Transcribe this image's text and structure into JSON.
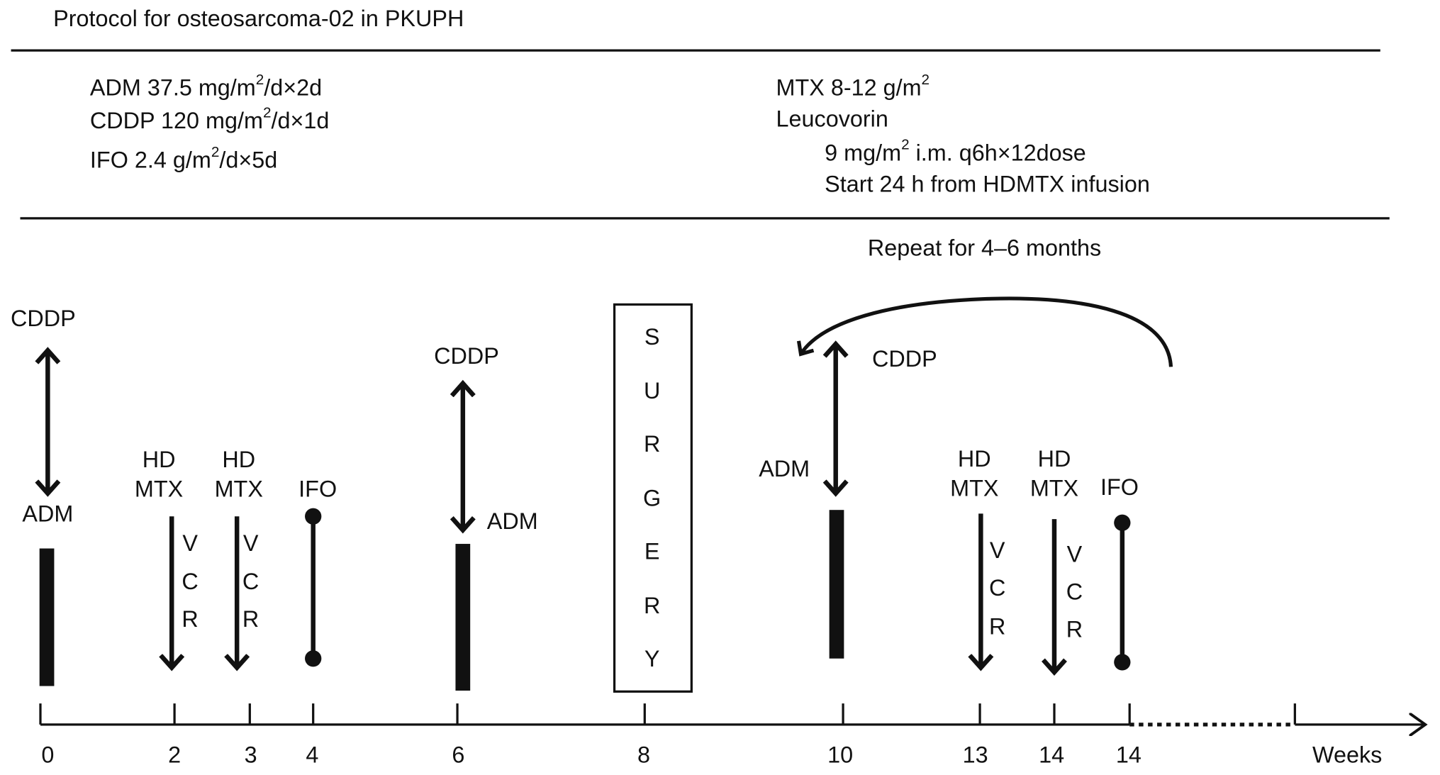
{
  "title": "Protocol for osteosarcoma-02 in PKUPH",
  "regimens": {
    "left": [
      [
        "ADM 37.5 mg/m",
        "2",
        "/d×2d"
      ],
      [
        "CDDP 120 mg/m",
        "2",
        "/d×1d"
      ],
      [
        "IFO 2.4 g/m",
        "2",
        "/d×5d"
      ]
    ],
    "right": [
      [
        "MTX 8-12 g/m",
        "2"
      ],
      [
        "Leucovorin"
      ],
      [
        "9 mg/m",
        "2",
        " i.m. q6h×12dose"
      ],
      [
        "Start 24 h from HDMTX infusion"
      ]
    ]
  },
  "timeline": {
    "repeat_label": "Repeat for 4–6 months",
    "surgery": [
      "S",
      "U",
      "R",
      "G",
      "E",
      "R",
      "Y"
    ],
    "events": [
      {
        "above": "CDDP",
        "below": "ADM"
      },
      {
        "label": [
          "HD",
          "MTX"
        ],
        "side": [
          "V",
          "C",
          "R"
        ]
      },
      {
        "label": [
          "HD",
          "MTX"
        ],
        "side": [
          "V",
          "C",
          "R"
        ]
      },
      {
        "label": [
          "IFO"
        ]
      },
      {
        "above": "CDDP",
        "below": "ADM"
      },
      {
        "above": "CDDP",
        "below": "ADM"
      },
      {
        "label": [
          "HD",
          "MTX"
        ],
        "side": [
          "V",
          "C",
          "R"
        ]
      },
      {
        "label": [
          "HD",
          "MTX"
        ],
        "side": [
          "V",
          "C",
          "R"
        ]
      },
      {
        "label": [
          "IFO"
        ]
      }
    ],
    "weeks": [
      "0",
      "2",
      "3",
      "4",
      "6",
      "8",
      "10",
      "13",
      "14",
      "14"
    ],
    "axis_label": "Weeks"
  }
}
